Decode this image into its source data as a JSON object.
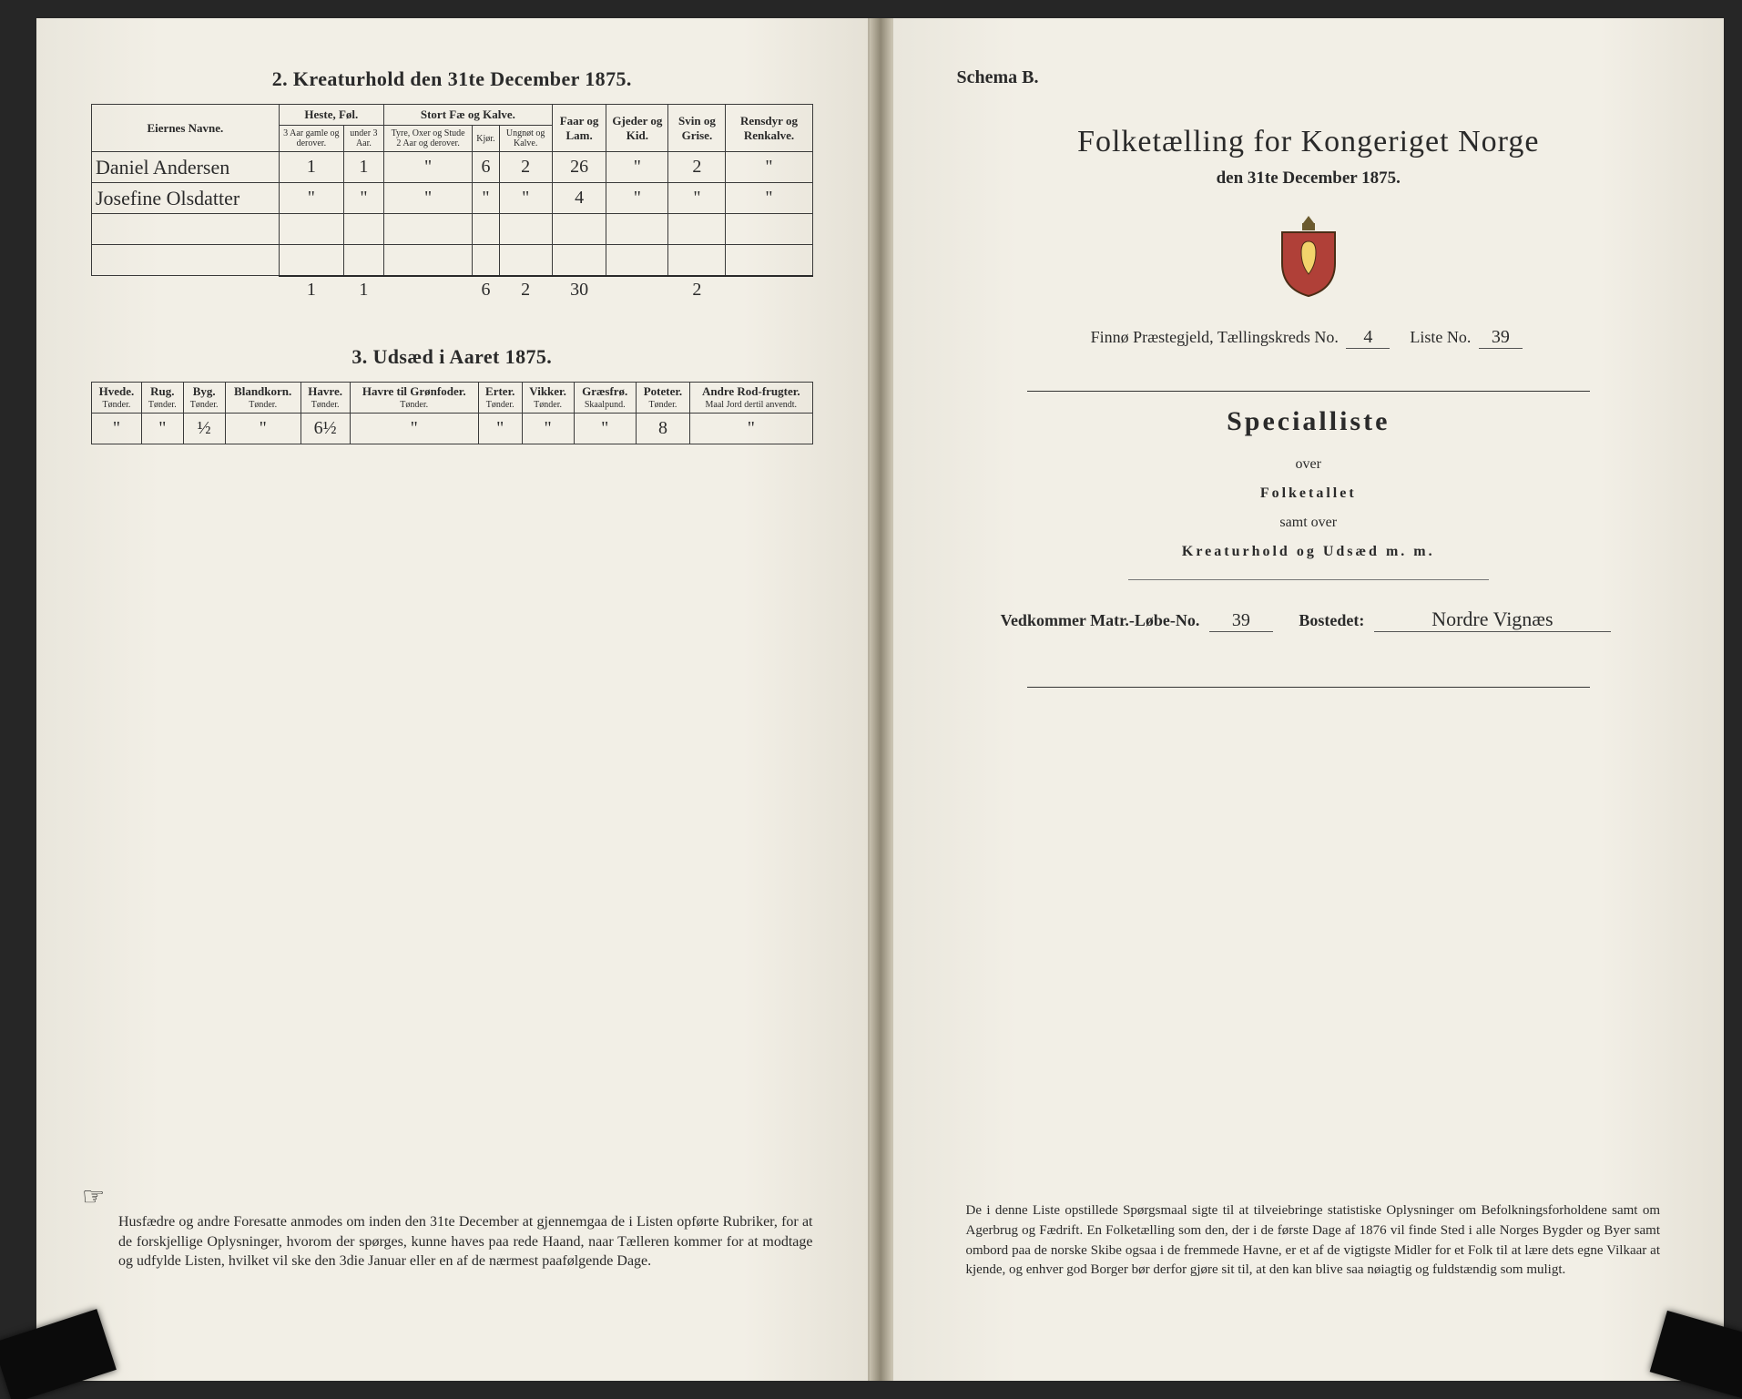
{
  "left": {
    "section2": {
      "title": "2.  Kreaturhold den 31te December 1875.",
      "groupHeaders": {
        "name": "Eiernes Navne.",
        "heste": "Heste, Føl.",
        "stort": "Stort Fæ og Kalve.",
        "faar": "Faar og Lam.",
        "gjeder": "Gjeder og Kid.",
        "svin": "Svin og Grise.",
        "rens": "Rensdyr og Renkalve."
      },
      "subHeaders": {
        "heste_a": "3 Aar gamle og derover.",
        "heste_b": "under 3 Aar.",
        "stort_a": "Tyre, Oxer og Stude 2 Aar og derover.",
        "stort_b": "Kjør.",
        "stort_c": "Ungnøt og Kalve."
      },
      "rows": [
        {
          "name": "Daniel Andersen",
          "c": [
            "1",
            "1",
            "\"",
            "6",
            "2",
            "26",
            "\"",
            "2",
            "\""
          ]
        },
        {
          "name": "Josefine Olsdatter",
          "c": [
            "\"",
            "\"",
            "\"",
            "\"",
            "\"",
            "4",
            "\"",
            "\"",
            "\""
          ]
        }
      ],
      "emptyRows": 2,
      "totals": [
        "1",
        "1",
        "",
        "6",
        "2",
        "30",
        "",
        "2",
        ""
      ]
    },
    "section3": {
      "title": "3.  Udsæd i Aaret 1875.",
      "columns": [
        {
          "h": "Hvede.",
          "u": "Tønder."
        },
        {
          "h": "Rug.",
          "u": "Tønder."
        },
        {
          "h": "Byg.",
          "u": "Tønder."
        },
        {
          "h": "Blandkorn.",
          "u": "Tønder."
        },
        {
          "h": "Havre.",
          "u": "Tønder."
        },
        {
          "h": "Havre til Grønfoder.",
          "u": "Tønder."
        },
        {
          "h": "Erter.",
          "u": "Tønder."
        },
        {
          "h": "Vikker.",
          "u": "Tønder."
        },
        {
          "h": "Græsfrø.",
          "u": "Skaalpund."
        },
        {
          "h": "Poteter.",
          "u": "Tønder."
        },
        {
          "h": "Andre Rod-frugter.",
          "u": "Maal Jord dertil anvendt."
        }
      ],
      "row": [
        "\"",
        "\"",
        "½",
        "\"",
        "6½",
        "\"",
        "\"",
        "\"",
        "\"",
        "8",
        "\""
      ]
    },
    "footnote": "Husfædre og andre Foresatte anmodes om inden den 31te December at gjennemgaa de i Listen opførte Rubriker, for at de forskjellige Oplysninger, hvorom der spørges, kunne haves paa rede Haand, naar Tælleren kommer for at modtage og udfylde Listen, hvilket vil ske den 3die Januar eller en af de nærmest paafølgende Dage."
  },
  "right": {
    "schemaLabel": "Schema B.",
    "title": "Folketælling for Kongeriget Norge",
    "subtitle": "den 31te December 1875.",
    "metaLine": {
      "prefix": "Finnø Præstegjeld, Tællingskreds No.",
      "kreds": "4",
      "listeLabel": "Liste No.",
      "liste": "39"
    },
    "block": {
      "head": "Specialliste",
      "l1": "over",
      "l2": "Folketallet",
      "l3": "samt over",
      "l4": "Kreaturhold og Udsæd m. m."
    },
    "matr": {
      "label": "Vedkommer Matr.-Løbe-No.",
      "no": "39",
      "bostedetLabel": "Bostedet:",
      "bostedet": "Nordre Vignæs"
    },
    "footnote": "De i denne Liste opstillede Spørgsmaal sigte til at tilveiebringe statistiske Oplysninger om Befolkningsforholdene samt om Agerbrug og Fædrift.  En Folketælling som den, der i de første Dage af 1876 vil finde Sted i alle Norges Bygder og Byer samt ombord paa de norske Skibe ogsaa i de fremmede Havne, er et af de vigtigste Midler for et Folk til at lære dets egne Vilkaar at kjende, og enhver god Borger bør derfor gjøre sit til, at den kan blive saa nøiagtig og fuldstændig som muligt."
  }
}
